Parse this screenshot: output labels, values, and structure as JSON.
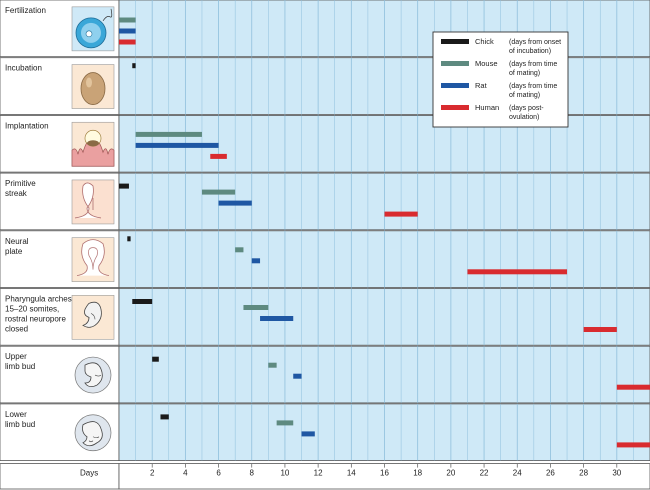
{
  "chart_data": {
    "type": "timeline",
    "xlabel": "Days",
    "xlim": [
      0,
      32
    ],
    "ticks": [
      2,
      4,
      6,
      8,
      10,
      12,
      14,
      16,
      18,
      20,
      22,
      24,
      26,
      28,
      30
    ],
    "gridlines": "vertical, every 1 day",
    "legend_position": "top-right",
    "colors": {
      "chick": "#1a1a1a",
      "mouse": "#5e8a80",
      "rat": "#1f57a3",
      "human": "#d92b2f",
      "panel": "#cfe9f7",
      "grid": "#8fbfdc"
    },
    "legend": [
      {
        "key": "chick",
        "name": "Chick",
        "desc": [
          "(days from onset",
          "of incubation)"
        ]
      },
      {
        "key": "mouse",
        "name": "Mouse",
        "desc": [
          "(days from time",
          "of mating)"
        ]
      },
      {
        "key": "rat",
        "name": "Rat",
        "desc": [
          "(days from time",
          "of mating)"
        ]
      },
      {
        "key": "human",
        "name": "Human",
        "desc": [
          "(days post-",
          "ovulation)"
        ]
      }
    ],
    "stages": [
      {
        "label": [
          "Fertilization"
        ],
        "icon": "fertilization-icon",
        "bars": [
          {
            "species": "mouse",
            "start": 0,
            "end": 1
          },
          {
            "species": "rat",
            "start": 0,
            "end": 1
          },
          {
            "species": "human",
            "start": 0,
            "end": 1
          }
        ]
      },
      {
        "label": [
          "Incubation"
        ],
        "icon": "egg-icon",
        "bars": [
          {
            "species": "chick",
            "start": 0.8,
            "end": 1.0
          }
        ]
      },
      {
        "label": [
          "Implantation"
        ],
        "icon": "implantation-icon",
        "bars": [
          {
            "species": "mouse",
            "start": 1,
            "end": 5
          },
          {
            "species": "rat",
            "start": 1,
            "end": 6
          },
          {
            "species": "human",
            "start": 5.5,
            "end": 6.5
          }
        ]
      },
      {
        "label": [
          "Primitive",
          "streak"
        ],
        "icon": "primitive-streak-icon",
        "bars": [
          {
            "species": "chick",
            "start": 0,
            "end": 0.6
          },
          {
            "species": "mouse",
            "start": 5,
            "end": 7
          },
          {
            "species": "rat",
            "start": 6,
            "end": 8
          },
          {
            "species": "human",
            "start": 16,
            "end": 18
          }
        ]
      },
      {
        "label": [
          "Neural",
          "plate"
        ],
        "icon": "neural-plate-icon",
        "bars": [
          {
            "species": "chick",
            "start": 0.5,
            "end": 0.7
          },
          {
            "species": "mouse",
            "start": 7,
            "end": 7.5
          },
          {
            "species": "rat",
            "start": 8,
            "end": 8.5
          },
          {
            "species": "human",
            "start": 21,
            "end": 27
          }
        ]
      },
      {
        "label": [
          "Pharyngula arches",
          "15–20 somites,",
          "rostral neuropore",
          "closed"
        ],
        "icon": "pharyngula-embryo-icon",
        "bars": [
          {
            "species": "chick",
            "start": 0.8,
            "end": 2
          },
          {
            "species": "mouse",
            "start": 7.5,
            "end": 9
          },
          {
            "species": "rat",
            "start": 8.5,
            "end": 10.5
          },
          {
            "species": "human",
            "start": 28,
            "end": 30
          }
        ]
      },
      {
        "label": [
          "Upper",
          "limb bud"
        ],
        "icon": "upper-limb-embryo-icon",
        "bars": [
          {
            "species": "chick",
            "start": 2,
            "end": 2.4
          },
          {
            "species": "mouse",
            "start": 9,
            "end": 9.5
          },
          {
            "species": "rat",
            "start": 10.5,
            "end": 11
          },
          {
            "species": "human",
            "start": 30,
            "end": 32
          }
        ]
      },
      {
        "label": [
          "Lower",
          "limb bud"
        ],
        "icon": "lower-limb-embryo-icon",
        "bars": [
          {
            "species": "chick",
            "start": 2.5,
            "end": 3
          },
          {
            "species": "mouse",
            "start": 9.5,
            "end": 10.5
          },
          {
            "species": "rat",
            "start": 11,
            "end": 11.8
          },
          {
            "species": "human",
            "start": 30,
            "end": 32
          }
        ]
      }
    ]
  }
}
